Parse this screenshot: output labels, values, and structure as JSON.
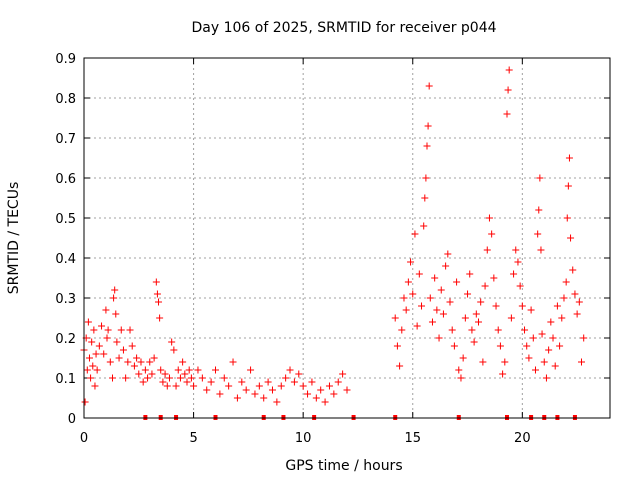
{
  "chart_data": {
    "type": "scatter",
    "title": "Day 106 of 2025, SRMTID for receiver p044",
    "xlabel": "GPS time / hours",
    "ylabel": "SRMTID / TECUs",
    "xlim": [
      0,
      24
    ],
    "ylim": [
      0,
      0.9
    ],
    "xticks": [
      0,
      5,
      10,
      15,
      20
    ],
    "yticks": [
      0,
      0.1,
      0.2,
      0.3,
      0.4,
      0.5,
      0.6,
      0.7,
      0.8,
      0.9
    ],
    "xtick_labels": [
      "0",
      "5",
      "10",
      "15",
      "20"
    ],
    "ytick_labels": [
      "0",
      "0.1",
      "0.2",
      "0.3",
      "0.4",
      "0.5",
      "0.6",
      "0.7",
      "0.8",
      "0.9"
    ],
    "grid": true,
    "marker": "+",
    "color": "#ff0000",
    "series": [
      {
        "name": "SRMTID",
        "points": [
          [
            0.0,
            0.17
          ],
          [
            0.05,
            0.04
          ],
          [
            0.1,
            0.2
          ],
          [
            0.15,
            0.12
          ],
          [
            0.2,
            0.24
          ],
          [
            0.25,
            0.15
          ],
          [
            0.3,
            0.1
          ],
          [
            0.35,
            0.19
          ],
          [
            0.4,
            0.13
          ],
          [
            0.45,
            0.22
          ],
          [
            0.5,
            0.08
          ],
          [
            0.55,
            0.16
          ],
          [
            0.6,
            0.12
          ],
          [
            0.7,
            0.18
          ],
          [
            0.8,
            0.23
          ],
          [
            0.9,
            0.16
          ],
          [
            1.0,
            0.27
          ],
          [
            1.05,
            0.2
          ],
          [
            1.1,
            0.22
          ],
          [
            1.2,
            0.14
          ],
          [
            1.3,
            0.1
          ],
          [
            1.35,
            0.3
          ],
          [
            1.4,
            0.32
          ],
          [
            1.45,
            0.26
          ],
          [
            1.5,
            0.19
          ],
          [
            1.6,
            0.15
          ],
          [
            1.7,
            0.22
          ],
          [
            1.8,
            0.17
          ],
          [
            1.9,
            0.1
          ],
          [
            2.0,
            0.14
          ],
          [
            2.1,
            0.22
          ],
          [
            2.2,
            0.18
          ],
          [
            2.3,
            0.13
          ],
          [
            2.4,
            0.15
          ],
          [
            2.5,
            0.11
          ],
          [
            2.6,
            0.14
          ],
          [
            2.7,
            0.09
          ],
          [
            2.8,
            0.12
          ],
          [
            2.9,
            0.1
          ],
          [
            3.0,
            0.14
          ],
          [
            3.1,
            0.11
          ],
          [
            3.2,
            0.15
          ],
          [
            3.3,
            0.34
          ],
          [
            3.35,
            0.31
          ],
          [
            3.4,
            0.29
          ],
          [
            3.45,
            0.25
          ],
          [
            3.5,
            0.12
          ],
          [
            3.6,
            0.09
          ],
          [
            3.7,
            0.11
          ],
          [
            3.8,
            0.08
          ],
          [
            3.9,
            0.1
          ],
          [
            4.0,
            0.19
          ],
          [
            4.1,
            0.17
          ],
          [
            4.2,
            0.08
          ],
          [
            4.3,
            0.12
          ],
          [
            4.4,
            0.1
          ],
          [
            4.5,
            0.14
          ],
          [
            4.6,
            0.11
          ],
          [
            4.7,
            0.09
          ],
          [
            4.8,
            0.12
          ],
          [
            4.9,
            0.1
          ],
          [
            5.0,
            0.08
          ],
          [
            5.2,
            0.12
          ],
          [
            5.4,
            0.1
          ],
          [
            5.6,
            0.07
          ],
          [
            5.8,
            0.09
          ],
          [
            6.0,
            0.12
          ],
          [
            6.2,
            0.06
          ],
          [
            6.4,
            0.1
          ],
          [
            6.6,
            0.08
          ],
          [
            6.8,
            0.14
          ],
          [
            7.0,
            0.05
          ],
          [
            7.2,
            0.09
          ],
          [
            7.4,
            0.07
          ],
          [
            7.6,
            0.12
          ],
          [
            7.8,
            0.06
          ],
          [
            8.0,
            0.08
          ],
          [
            8.2,
            0.05
          ],
          [
            8.4,
            0.09
          ],
          [
            8.6,
            0.07
          ],
          [
            8.8,
            0.04
          ],
          [
            9.0,
            0.08
          ],
          [
            9.2,
            0.1
          ],
          [
            9.4,
            0.12
          ],
          [
            9.6,
            0.09
          ],
          [
            9.8,
            0.11
          ],
          [
            10.0,
            0.08
          ],
          [
            10.2,
            0.06
          ],
          [
            10.4,
            0.09
          ],
          [
            10.6,
            0.05
          ],
          [
            10.8,
            0.07
          ],
          [
            11.0,
            0.04
          ],
          [
            11.2,
            0.08
          ],
          [
            11.4,
            0.06
          ],
          [
            11.6,
            0.09
          ],
          [
            11.8,
            0.11
          ],
          [
            12.0,
            0.07
          ],
          [
            14.2,
            0.25
          ],
          [
            14.3,
            0.18
          ],
          [
            14.4,
            0.13
          ],
          [
            14.5,
            0.22
          ],
          [
            14.6,
            0.3
          ],
          [
            14.7,
            0.27
          ],
          [
            14.8,
            0.34
          ],
          [
            14.9,
            0.39
          ],
          [
            15.0,
            0.31
          ],
          [
            15.1,
            0.46
          ],
          [
            15.2,
            0.23
          ],
          [
            15.3,
            0.36
          ],
          [
            15.4,
            0.28
          ],
          [
            15.5,
            0.48
          ],
          [
            15.55,
            0.55
          ],
          [
            15.6,
            0.6
          ],
          [
            15.65,
            0.68
          ],
          [
            15.7,
            0.73
          ],
          [
            15.75,
            0.83
          ],
          [
            15.8,
            0.3
          ],
          [
            15.9,
            0.24
          ],
          [
            16.0,
            0.35
          ],
          [
            16.1,
            0.27
          ],
          [
            16.2,
            0.2
          ],
          [
            16.3,
            0.32
          ],
          [
            16.4,
            0.26
          ],
          [
            16.5,
            0.38
          ],
          [
            16.6,
            0.41
          ],
          [
            16.7,
            0.29
          ],
          [
            16.8,
            0.22
          ],
          [
            16.9,
            0.18
          ],
          [
            17.0,
            0.34
          ],
          [
            17.1,
            0.12
          ],
          [
            17.2,
            0.1
          ],
          [
            17.3,
            0.15
          ],
          [
            17.4,
            0.25
          ],
          [
            17.5,
            0.31
          ],
          [
            17.6,
            0.36
          ],
          [
            17.7,
            0.22
          ],
          [
            17.8,
            0.19
          ],
          [
            17.9,
            0.26
          ],
          [
            18.0,
            0.24
          ],
          [
            18.1,
            0.29
          ],
          [
            18.2,
            0.14
          ],
          [
            18.3,
            0.33
          ],
          [
            18.4,
            0.42
          ],
          [
            18.5,
            0.5
          ],
          [
            18.6,
            0.46
          ],
          [
            18.7,
            0.35
          ],
          [
            18.8,
            0.28
          ],
          [
            18.9,
            0.22
          ],
          [
            19.0,
            0.18
          ],
          [
            19.1,
            0.11
          ],
          [
            19.2,
            0.14
          ],
          [
            19.3,
            0.76
          ],
          [
            19.35,
            0.82
          ],
          [
            19.4,
            0.87
          ],
          [
            19.5,
            0.25
          ],
          [
            19.6,
            0.36
          ],
          [
            19.7,
            0.42
          ],
          [
            19.8,
            0.39
          ],
          [
            19.9,
            0.33
          ],
          [
            20.0,
            0.28
          ],
          [
            20.1,
            0.22
          ],
          [
            20.2,
            0.18
          ],
          [
            20.3,
            0.15
          ],
          [
            20.4,
            0.27
          ],
          [
            20.5,
            0.2
          ],
          [
            20.6,
            0.12
          ],
          [
            20.7,
            0.46
          ],
          [
            20.75,
            0.52
          ],
          [
            20.8,
            0.6
          ],
          [
            20.85,
            0.42
          ],
          [
            20.9,
            0.21
          ],
          [
            21.0,
            0.14
          ],
          [
            21.1,
            0.1
          ],
          [
            21.2,
            0.17
          ],
          [
            21.3,
            0.24
          ],
          [
            21.4,
            0.2
          ],
          [
            21.5,
            0.13
          ],
          [
            21.6,
            0.28
          ],
          [
            21.7,
            0.18
          ],
          [
            21.8,
            0.25
          ],
          [
            21.9,
            0.3
          ],
          [
            22.0,
            0.34
          ],
          [
            22.05,
            0.5
          ],
          [
            22.1,
            0.58
          ],
          [
            22.15,
            0.65
          ],
          [
            22.2,
            0.45
          ],
          [
            22.3,
            0.37
          ],
          [
            22.4,
            0.31
          ],
          [
            22.5,
            0.26
          ],
          [
            22.6,
            0.29
          ],
          [
            22.7,
            0.14
          ],
          [
            22.8,
            0.2
          ]
        ]
      }
    ],
    "bottom_flags_x": [
      2.8,
      3.5,
      4.2,
      6.0,
      8.2,
      9.1,
      10.5,
      12.3,
      14.2,
      17.1,
      19.3,
      20.4,
      21.0,
      21.6,
      22.4
    ]
  }
}
